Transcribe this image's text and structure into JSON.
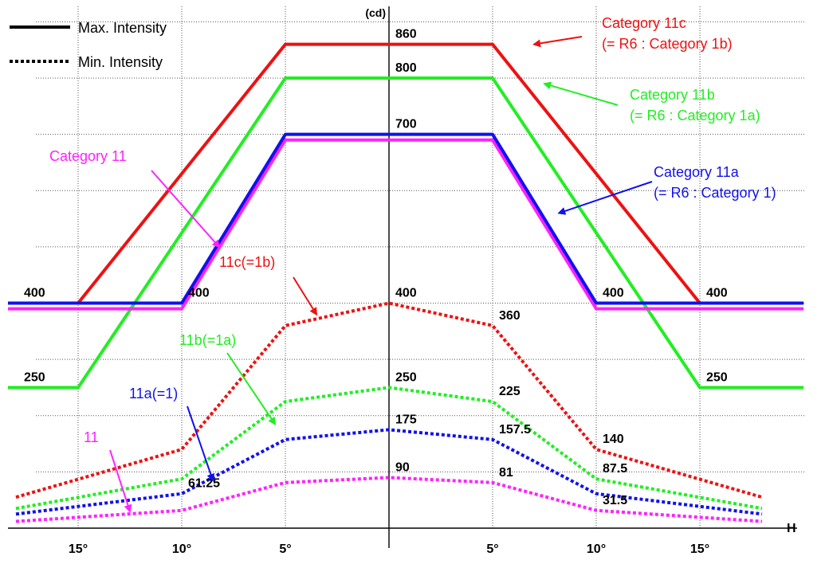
{
  "chart_data": {
    "type": "line",
    "title": "",
    "y_unit_label": "(cd)",
    "x_axis_label": "H",
    "x_range_deg": [
      -20,
      20
    ],
    "y_range_cd": [
      0,
      900
    ],
    "grid": true,
    "x_gridlines_deg": [
      -15,
      -10,
      -5,
      5,
      10,
      15
    ],
    "y_gridlines_cd": [
      100,
      200,
      300,
      400,
      500,
      600,
      700,
      800,
      900
    ],
    "x_tick_labels": [
      "15°",
      "10°",
      "5°",
      "5°",
      "10°",
      "15°"
    ],
    "x_tick_values_deg": [
      -15,
      -10,
      -5,
      5,
      10,
      15
    ],
    "legend": [
      {
        "label": "Max. Intensity",
        "style": "solid"
      },
      {
        "label": "Min. Intensity",
        "style": "dotted"
      }
    ],
    "legend_position": "top-left",
    "series": [
      {
        "name": "Category 11c (= R6 : Category 1b)",
        "kind": "max",
        "color": "#ee1111",
        "style": "solid",
        "x": [
          -20,
          -15,
          -5,
          5,
          15,
          20
        ],
        "y": [
          400,
          400,
          860,
          860,
          400,
          400
        ]
      },
      {
        "name": "Category 11b (= R6 : Category 1a)",
        "kind": "max",
        "color": "#22ee22",
        "style": "solid",
        "x": [
          -20,
          -15,
          -5,
          5,
          15,
          20
        ],
        "y": [
          250,
          250,
          800,
          800,
          250,
          250
        ]
      },
      {
        "name": "Category 11",
        "kind": "max",
        "color": "#ff22ff",
        "style": "solid",
        "x": [
          -20,
          -10,
          -5,
          5,
          10,
          20
        ],
        "y": [
          390,
          390,
          690,
          690,
          390,
          390
        ]
      },
      {
        "name": "Category 11a (= R6 : Category 1)",
        "kind": "max",
        "color": "#1111ee",
        "style": "solid",
        "x": [
          -20,
          -10,
          -5,
          5,
          10,
          20
        ],
        "y": [
          400,
          400,
          700,
          700,
          400,
          400
        ]
      },
      {
        "name": "11c(=1b)",
        "kind": "min",
        "color": "#ee1111",
        "style": "dotted",
        "x": [
          -18,
          -10,
          -5,
          0,
          5,
          10,
          18
        ],
        "y": [
          55,
          140,
          360,
          400,
          360,
          140,
          55
        ]
      },
      {
        "name": "11b(=1a)",
        "kind": "min",
        "color": "#22ee22",
        "style": "dotted",
        "x": [
          -18,
          -10,
          -5,
          0,
          5,
          10,
          18
        ],
        "y": [
          35,
          87.5,
          225,
          250,
          225,
          87.5,
          35
        ]
      },
      {
        "name": "11a(=1)",
        "kind": "min",
        "color": "#1111ee",
        "style": "dotted",
        "x": [
          -18,
          -10,
          -5,
          0,
          5,
          10,
          18
        ],
        "y": [
          25,
          61.25,
          157.5,
          175,
          157.5,
          61.25,
          25
        ]
      },
      {
        "name": "11",
        "kind": "min",
        "color": "#ff22ff",
        "style": "dotted",
        "x": [
          -18,
          -10,
          -5,
          0,
          5,
          10,
          18
        ],
        "y": [
          12,
          31.5,
          81,
          90,
          81,
          31.5,
          12
        ]
      }
    ],
    "value_labels": [
      {
        "text": "860",
        "x": 0,
        "y": 860
      },
      {
        "text": "800",
        "x": 0,
        "y": 800
      },
      {
        "text": "700",
        "x": 0,
        "y": 700
      },
      {
        "text": "400",
        "x": -20,
        "y": 400
      },
      {
        "text": "400",
        "x": -10,
        "y": 400
      },
      {
        "text": "400",
        "x": 10,
        "y": 400
      },
      {
        "text": "400",
        "x": 15,
        "y": 400
      },
      {
        "text": "250",
        "x": -20,
        "y": 250
      },
      {
        "text": "250",
        "x": 15,
        "y": 250
      },
      {
        "text": "400",
        "x": 0,
        "y": 400
      },
      {
        "text": "360",
        "x": 5,
        "y": 360
      },
      {
        "text": "250",
        "x": 0,
        "y": 250
      },
      {
        "text": "225",
        "x": 5,
        "y": 225
      },
      {
        "text": "175",
        "x": 0,
        "y": 175
      },
      {
        "text": "157.5",
        "x": 5,
        "y": 157.5
      },
      {
        "text": "140",
        "x": 10,
        "y": 140
      },
      {
        "text": "90",
        "x": 0,
        "y": 90
      },
      {
        "text": "81",
        "x": 5,
        "y": 81
      },
      {
        "text": "87.5",
        "x": 10,
        "y": 87.5
      },
      {
        "text": "61.25",
        "x": -10,
        "y": 61.25
      },
      {
        "text": "31.5",
        "x": 10,
        "y": 31.5
      }
    ],
    "annotations": [
      {
        "text": "Category 11c",
        "text2": "(= R6 : Category 1b)",
        "color": "#ee1111",
        "target_x": 7,
        "target_y": 860
      },
      {
        "text": "Category 11b",
        "text2": "(= R6 : Category 1a)",
        "color": "#22ee22",
        "target_x": 7.5,
        "target_y": 790
      },
      {
        "text": "Category 11a",
        "text2": "(= R6 : Category 1)",
        "color": "#1111ee",
        "target_x": 8.2,
        "target_y": 560
      },
      {
        "text": "Category 11",
        "text2": "",
        "color": "#ff22ff",
        "target_x": -8.2,
        "target_y": 500
      },
      {
        "text": "11c(=1b)",
        "text2": "",
        "color": "#ee1111",
        "target_x": -3.5,
        "target_y": 380
      },
      {
        "text": "11b(=1a)",
        "text2": "",
        "color": "#22ee22",
        "target_x": -5.5,
        "target_y": 185
      },
      {
        "text": "11a(=1)",
        "text2": "",
        "color": "#1111ee",
        "target_x": -8.5,
        "target_y": 85
      },
      {
        "text": "11",
        "text2": "",
        "color": "#ff22ff",
        "target_x": -12.5,
        "target_y": 30
      }
    ]
  }
}
